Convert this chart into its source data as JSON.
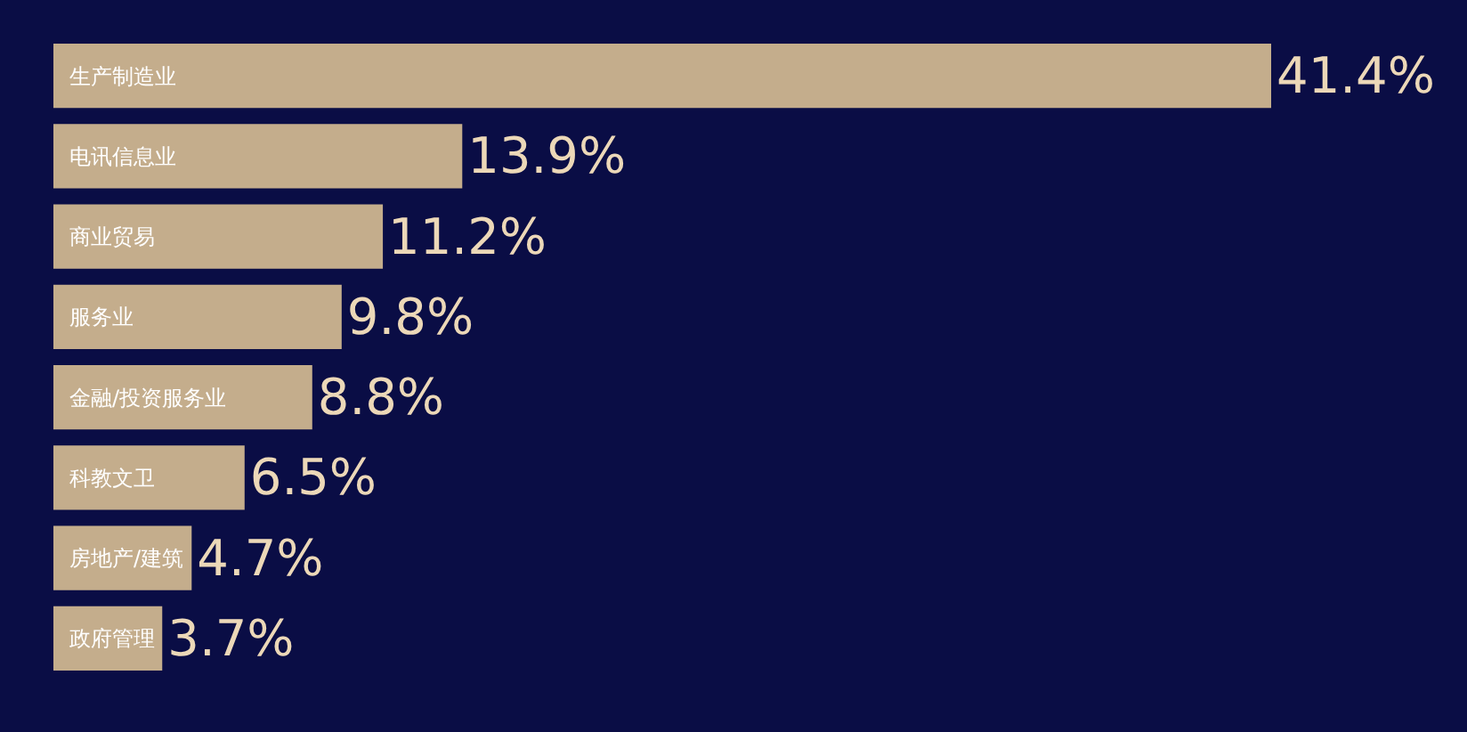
{
  "chart_data": {
    "type": "bar",
    "orientation": "horizontal",
    "categories": [
      "生产制造业",
      "电讯信息业",
      "商业贸易",
      "服务业",
      "金融/投资服务业",
      "科教文卫",
      "房地产/建筑",
      "政府管理"
    ],
    "values": [
      41.4,
      13.9,
      11.2,
      9.8,
      8.8,
      6.5,
      4.7,
      3.7
    ],
    "value_labels": [
      "41.4%",
      "13.9%",
      "11.2%",
      "9.8%",
      "8.8%",
      "6.5%",
      "4.7%",
      "3.7%"
    ],
    "color": "#c4ad8c",
    "tick_labels": "y"
  }
}
